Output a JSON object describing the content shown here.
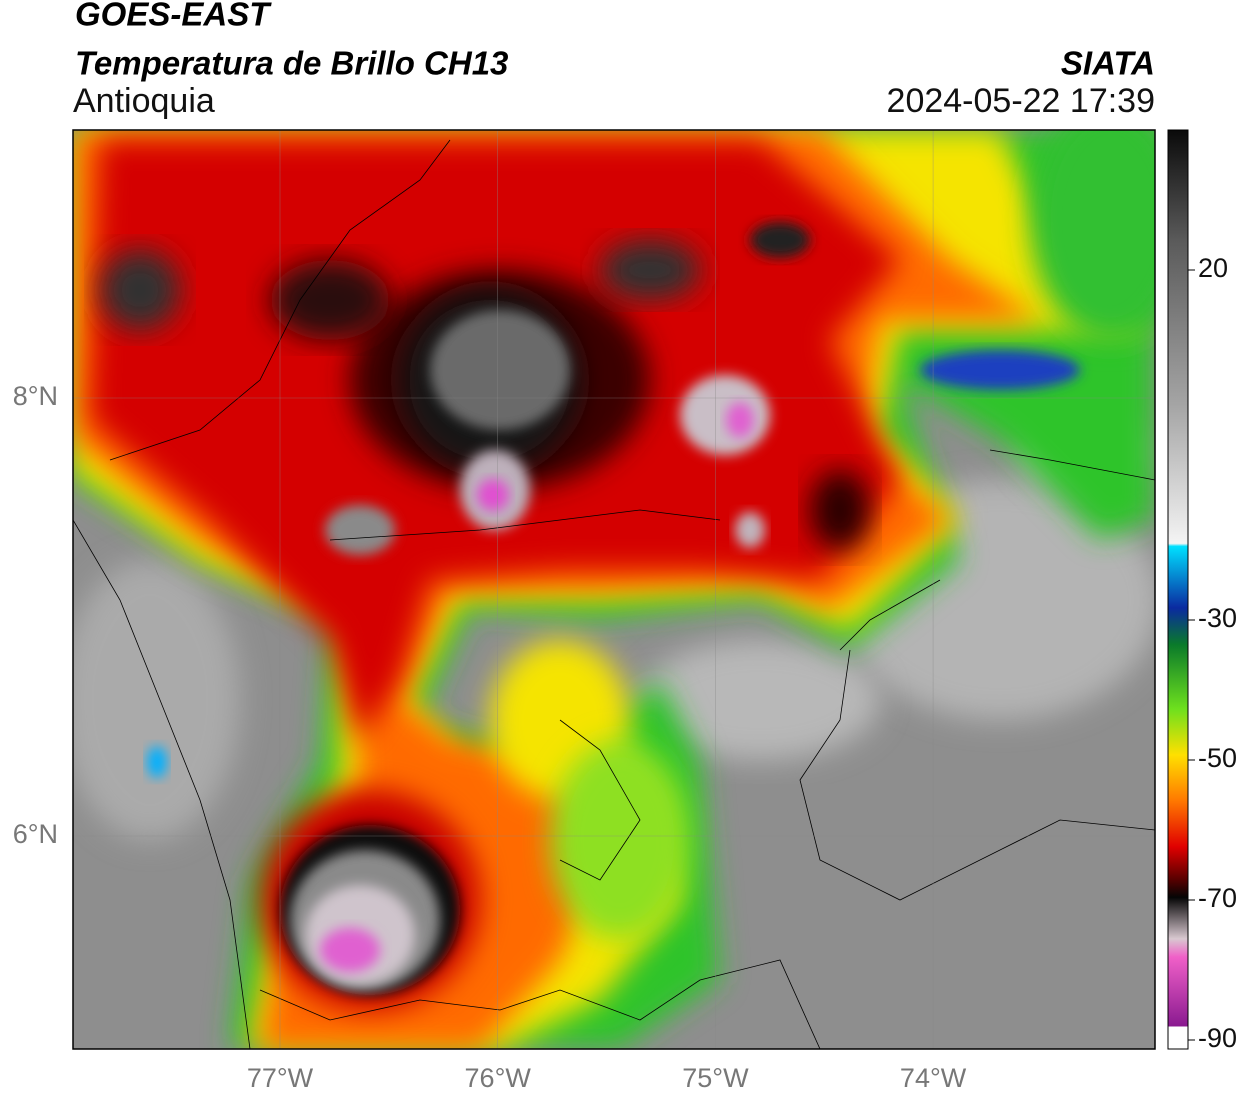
{
  "header": {
    "satellite": "GOES-EAST",
    "product": "Temperatura de Brillo CH13",
    "region": "Antioquia",
    "agency": "SIATA",
    "timestamp": "2024-05-22 17:39"
  },
  "map": {
    "lon_ticks": [
      "77°W",
      "76°W",
      "75°W",
      "74°W"
    ],
    "lat_ticks": [
      "8°N",
      "6°N"
    ]
  },
  "colorbar": {
    "ticks": [
      20,
      -30,
      -50,
      -70,
      -90
    ]
  }
}
